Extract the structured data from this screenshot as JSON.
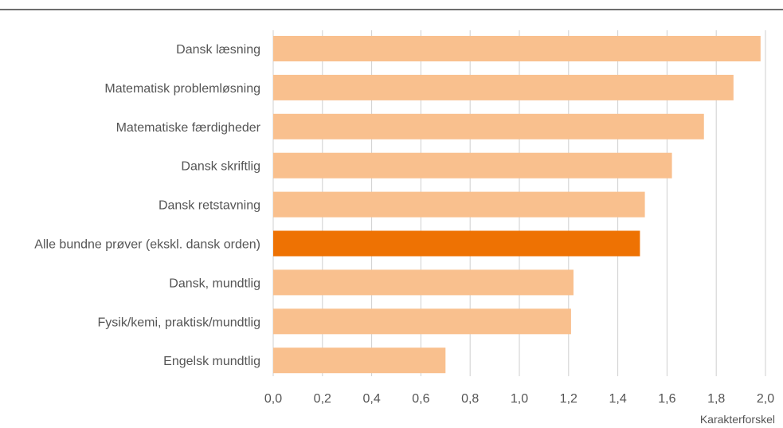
{
  "chart_data": {
    "type": "bar",
    "orientation": "horizontal",
    "xlabel": "Karakterforskel",
    "xlim": [
      0,
      2.0
    ],
    "xticks": [
      "0,0",
      "0,2",
      "0,4",
      "0,6",
      "0,8",
      "1,0",
      "1,2",
      "1,4",
      "1,6",
      "1,8",
      "2,0"
    ],
    "grid": "vertical",
    "categories": [
      "Dansk læsning",
      "Matematisk problemløsning",
      "Matematiske færdigheder",
      "Dansk skriftlig",
      "Dansk retstavning",
      "Alle bundne prøver (ekskl. dansk orden)",
      "Dansk, mundtlig",
      "Fysik/kemi, praktisk/mundtlig",
      "Engelsk mundtlig"
    ],
    "values": [
      1.98,
      1.87,
      1.75,
      1.62,
      1.51,
      1.49,
      1.22,
      1.21,
      0.7
    ],
    "highlight_index": 5,
    "colors": {
      "bar": "#f9c08e",
      "highlight": "#ee7203",
      "grid": "#cfcfcf",
      "text": "#555555"
    }
  }
}
